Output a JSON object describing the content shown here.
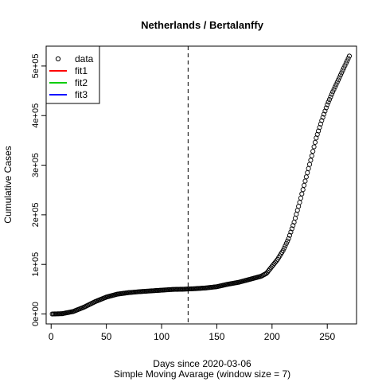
{
  "chart_data": {
    "type": "scatter",
    "title": "Netherlands / Bertalanffy",
    "xlabel": "Days since 2020-03-06",
    "xlabel2": "Simple Moving Avarage (window size = 7)",
    "ylabel": "Cumulative Cases",
    "xlim": [
      -4.5,
      276.5
    ],
    "ylim": [
      -20000,
      540000
    ],
    "x_ticks": [
      0,
      50,
      100,
      150,
      200,
      250
    ],
    "x_tick_labels": [
      "0",
      "50",
      "100",
      "150",
      "200",
      "250"
    ],
    "y_ticks": [
      0,
      100000,
      200000,
      300000,
      400000,
      500000
    ],
    "y_tick_labels": [
      "0e+00",
      "1e+05",
      "2e+05",
      "3e+05",
      "4e+05",
      "5e+05"
    ],
    "vline_x": 124,
    "grid": false,
    "legend_position": "top-left",
    "legend": [
      {
        "label": "data",
        "type": "point",
        "color": "#000000"
      },
      {
        "label": "fit1",
        "type": "line",
        "color": "#ff0000"
      },
      {
        "label": "fit2",
        "type": "line",
        "color": "#00cd00"
      },
      {
        "label": "fit3",
        "type": "line",
        "color": "#0000ff"
      }
    ],
    "series": [
      {
        "name": "data",
        "curve_x": [
          1,
          10,
          20,
          30,
          40,
          50,
          60,
          70,
          80,
          90,
          100,
          110,
          120,
          130,
          140,
          150,
          160,
          170,
          180,
          190,
          195,
          200,
          205,
          210,
          215,
          220,
          225,
          230,
          235,
          240,
          245,
          250,
          255,
          260,
          265,
          270
        ],
        "curve_y": [
          0,
          600,
          5000,
          14000,
          25000,
          34000,
          40000,
          43000,
          45000,
          46500,
          48000,
          49500,
          50000,
          51000,
          52500,
          55000,
          60000,
          64000,
          70000,
          76000,
          82000,
          96000,
          110000,
          128000,
          152000,
          185000,
          225000,
          268000,
          310000,
          355000,
          390000,
          422000,
          448000,
          472000,
          496000,
          520000
        ]
      }
    ]
  }
}
